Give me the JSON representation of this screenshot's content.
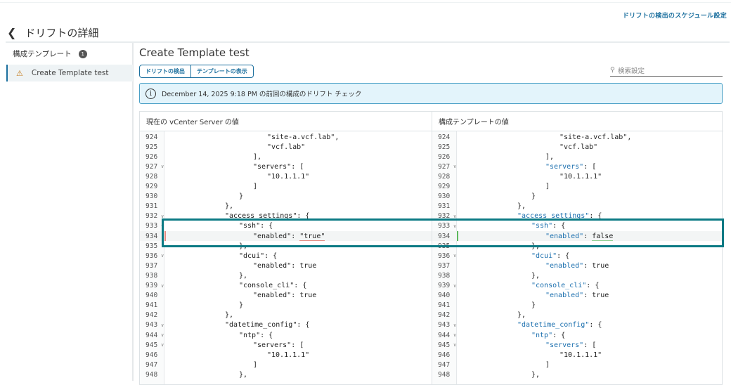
{
  "header": {
    "schedule_link": "ドリフトの検出のスケジュール設定",
    "title": "ドリフトの詳細"
  },
  "sidebar": {
    "heading": "構成テンプレート",
    "count": "1",
    "items": [
      {
        "label": "Create Template test",
        "icon": "warning-icon"
      }
    ]
  },
  "main": {
    "title": "Create Template test",
    "buttons": [
      "ドリフトの検出",
      "テンプレートの表示"
    ],
    "search_placeholder": "検索設定",
    "info": "December 14, 2025 9:18 PM の前回の構成のドリフト チェック",
    "colors": {
      "accent": "#1b6f9e",
      "highlight_box": "#0b7a84",
      "removed": "#e58a80",
      "added": "#5cb85c"
    },
    "diff": {
      "left_header": "現在の vCenter Server の値",
      "right_header": "構成テンプレートの値",
      "lines": [
        {
          "n": "924",
          "depth": 7,
          "key": "",
          "rest": "\"site-a.vcf.lab\",",
          "fold": false
        },
        {
          "n": "925",
          "depth": 7,
          "key": "",
          "rest": "\"vcf.lab\"",
          "fold": false
        },
        {
          "n": "926",
          "depth": 6,
          "key": "",
          "rest": "],",
          "fold": false
        },
        {
          "n": "927",
          "depth": 6,
          "key": "\"servers\"",
          "rest": ": [",
          "fold": true
        },
        {
          "n": "928",
          "depth": 7,
          "key": "",
          "rest": "\"10.1.1.1\"",
          "fold": false
        },
        {
          "n": "929",
          "depth": 6,
          "key": "",
          "rest": "]",
          "fold": false
        },
        {
          "n": "930",
          "depth": 5,
          "key": "",
          "rest": "}",
          "fold": false
        },
        {
          "n": "931",
          "depth": 4,
          "key": "",
          "rest": "},",
          "fold": false
        },
        {
          "n": "932",
          "depth": 4,
          "key": "\"access_settings\"",
          "rest": ": {",
          "fold": true
        },
        {
          "n": "933",
          "depth": 5,
          "key": "\"ssh\"",
          "rest": ": {",
          "fold": true
        },
        {
          "n": "934",
          "depth": 6,
          "key": "\"enabled\"",
          "rest": ": ",
          "fold": false,
          "left_value": "\"true\"",
          "right_value": "false",
          "changed": true
        },
        {
          "n": "935",
          "depth": 5,
          "key": "",
          "rest": "},",
          "fold": false
        },
        {
          "n": "936",
          "depth": 5,
          "key": "\"dcui\"",
          "rest": ": {",
          "fold": true
        },
        {
          "n": "937",
          "depth": 6,
          "key": "\"enabled\"",
          "rest": ": true",
          "fold": false
        },
        {
          "n": "938",
          "depth": 5,
          "key": "",
          "rest": "},",
          "fold": false
        },
        {
          "n": "939",
          "depth": 5,
          "key": "\"console_cli\"",
          "rest": ": {",
          "fold": true
        },
        {
          "n": "940",
          "depth": 6,
          "key": "\"enabled\"",
          "rest": ": true",
          "fold": false
        },
        {
          "n": "941",
          "depth": 5,
          "key": "",
          "rest": "}",
          "fold": false
        },
        {
          "n": "942",
          "depth": 4,
          "key": "",
          "rest": "},",
          "fold": false
        },
        {
          "n": "943",
          "depth": 4,
          "key": "\"datetime_config\"",
          "rest": ": {",
          "fold": true
        },
        {
          "n": "944",
          "depth": 5,
          "key": "\"ntp\"",
          "rest": ": {",
          "fold": true
        },
        {
          "n": "945",
          "depth": 6,
          "key": "\"servers\"",
          "rest": ": [",
          "fold": true
        },
        {
          "n": "946",
          "depth": 7,
          "key": "",
          "rest": "\"10.1.1.1\"",
          "fold": false
        },
        {
          "n": "947",
          "depth": 6,
          "key": "",
          "rest": "]",
          "fold": false
        },
        {
          "n": "948",
          "depth": 5,
          "key": "",
          "rest": "},",
          "fold": false
        }
      ]
    }
  }
}
